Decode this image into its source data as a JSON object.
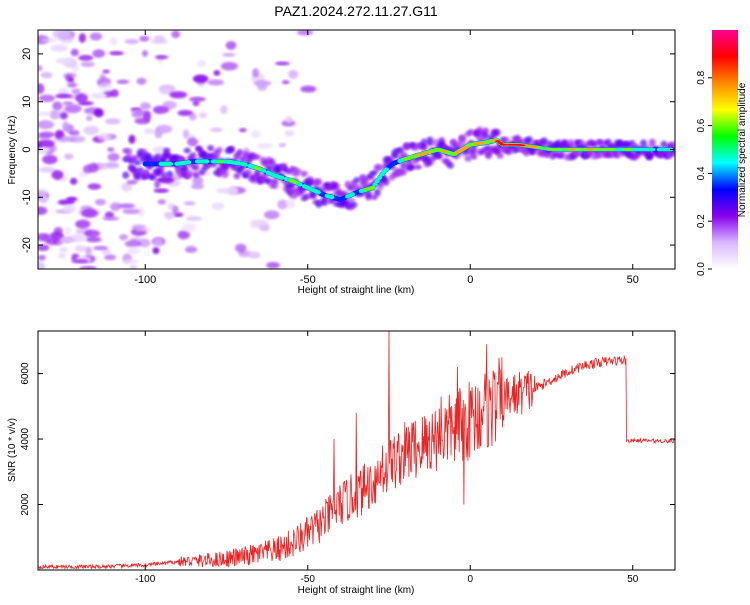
{
  "title": "PAZ1.2024.272.11.27.G11",
  "chart_data": [
    {
      "type": "heatmap",
      "xlabel": "Height of straight line (km)",
      "ylabel": "Frequency (Hz)",
      "xlim": [
        -133,
        63
      ],
      "ylim": [
        -25,
        25
      ],
      "x_ticks": [
        -100,
        -50,
        0,
        50
      ],
      "y_ticks": [
        -20,
        -10,
        0,
        10,
        20
      ],
      "colorbar": {
        "label": "Normalized spectral amplitude",
        "ticks": [
          0.0,
          0.2,
          0.4,
          0.6,
          0.8
        ],
        "range": [
          0,
          1
        ],
        "colors": [
          "#ffffff",
          "#d9b8ff",
          "#8800ee",
          "#0000ff",
          "#00ffff",
          "#00ff00",
          "#ffff00",
          "#ff8800",
          "#ff0000",
          "#ff0090"
        ]
      },
      "ridge": {
        "x": [
          -100,
          -95,
          -90,
          -85,
          -80,
          -75,
          -70,
          -65,
          -60,
          -55,
          -50,
          -45,
          -40,
          -35,
          -30,
          -27,
          -24,
          -20,
          -15,
          -10,
          -5,
          0,
          5,
          8,
          10,
          15,
          20,
          25,
          30,
          35,
          40,
          45,
          50,
          55,
          60,
          63
        ],
        "y": [
          -3,
          -3,
          -3,
          -2.5,
          -2.5,
          -2.5,
          -3,
          -4,
          -5.5,
          -6.5,
          -8,
          -9.5,
          -10.5,
          -9,
          -8,
          -5,
          -3,
          -2,
          -1,
          0,
          -1,
          1,
          1.5,
          2,
          1,
          1,
          0.5,
          0,
          0,
          0,
          0,
          0,
          0,
          0,
          0,
          0
        ],
        "amplitude": [
          0.35,
          0.4,
          0.45,
          0.4,
          0.45,
          0.5,
          0.45,
          0.5,
          0.45,
          0.5,
          0.45,
          0.4,
          0.35,
          0.4,
          0.6,
          0.4,
          0.35,
          0.5,
          0.75,
          0.6,
          0.65,
          0.7,
          0.6,
          0.7,
          0.9,
          0.95,
          0.6,
          0.55,
          0.6,
          0.65,
          0.6,
          0.5,
          0.5,
          0.45,
          0.45,
          0.45
        ]
      }
    },
    {
      "type": "line",
      "xlabel": "Height of straight line (km)",
      "ylabel": "SNR (10 * v/v)",
      "xlim": [
        -133,
        63
      ],
      "ylim": [
        0,
        7300
      ],
      "x_ticks": [
        -100,
        -50,
        0,
        50
      ],
      "y_ticks": [
        2000,
        4000,
        6000
      ],
      "color": "#ee2222",
      "envelope": {
        "x": [
          -133,
          -115,
          -100,
          -90,
          -80,
          -70,
          -60,
          -55,
          -50,
          -45,
          -40,
          -35,
          -30,
          -25,
          -20,
          -15,
          -10,
          -5,
          0,
          5,
          10,
          15,
          20,
          25,
          30,
          35,
          40,
          45,
          47.5,
          48,
          55,
          63
        ],
        "y": [
          100,
          100,
          150,
          250,
          300,
          400,
          600,
          800,
          1100,
          1500,
          2000,
          2300,
          2700,
          3200,
          3600,
          3800,
          4100,
          4300,
          4600,
          4900,
          5200,
          5400,
          5550,
          5800,
          6050,
          6250,
          6350,
          6400,
          6400,
          3950,
          3950,
          3930
        ]
      },
      "spikes": {
        "x": [
          -42,
          -35,
          -27,
          -25,
          -18,
          -14,
          -9,
          -6,
          -4,
          -2,
          4,
          5
        ],
        "y": [
          4000,
          4800,
          3800,
          7300,
          4500,
          4700,
          5300,
          3500,
          6200,
          2000,
          5000,
          6900
        ]
      }
    }
  ]
}
